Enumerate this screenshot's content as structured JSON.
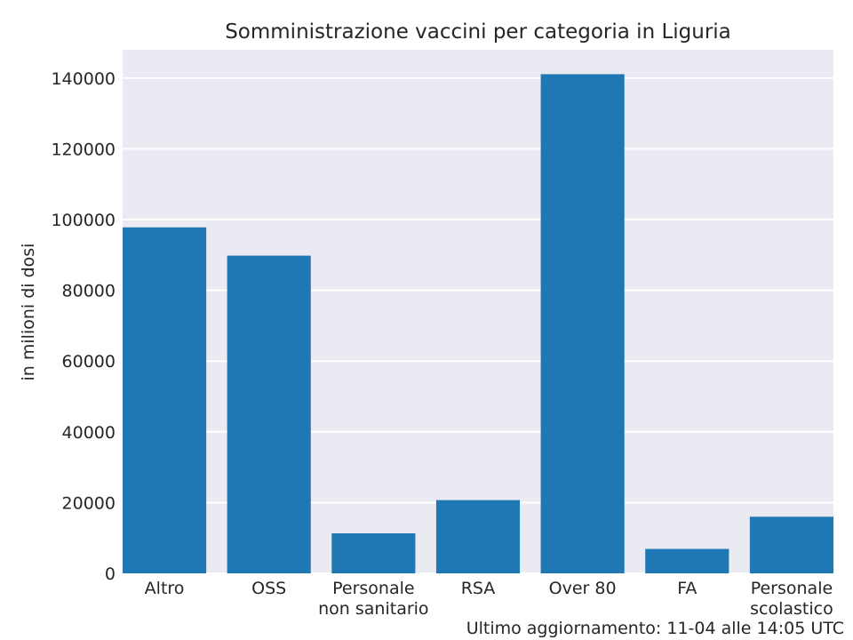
{
  "chart_data": {
    "type": "bar",
    "title": "Somministrazione vaccini per categoria in Liguria",
    "xlabel": "",
    "ylabel": "in milioni di dosi",
    "categories": [
      [
        "Altro"
      ],
      [
        "OSS"
      ],
      [
        "Personale",
        "non sanitario"
      ],
      [
        "RSA"
      ],
      [
        "Over 80"
      ],
      [
        "FA"
      ],
      [
        "Personale",
        "scolastico"
      ]
    ],
    "values": [
      97800,
      89800,
      11300,
      20700,
      141100,
      6900,
      16000
    ],
    "ylim": [
      0,
      148000
    ],
    "yticks": [
      0,
      20000,
      40000,
      60000,
      80000,
      100000,
      120000,
      140000
    ],
    "grid": true,
    "bar_color": "#1f77b4",
    "plot_background": "#eaeaf2",
    "grid_color": "#ffffff"
  },
  "footer": "Ultimo aggiornamento: 11-04 alle 14:05 UTC"
}
